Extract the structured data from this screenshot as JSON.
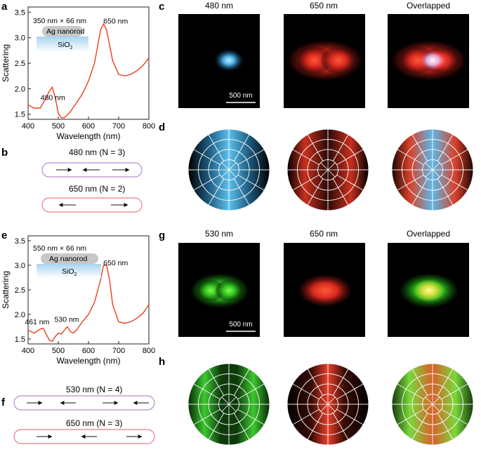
{
  "panel_labels": {
    "a": "a",
    "b": "b",
    "c": "c",
    "d": "d",
    "e": "e",
    "f": "f",
    "g": "g",
    "h": "h"
  },
  "colors": {
    "curve": "#e8401c",
    "blue": "#4fb3e8",
    "red": "#e8302a",
    "green": "#3ccf2a",
    "yellow": "#d8e85a",
    "rod": "#c8c8c8"
  },
  "chart_data": [
    {
      "id": "a",
      "type": "line",
      "xlabel": "Wavelength (nm)",
      "ylabel": "Scattering",
      "xlim": [
        400,
        800
      ],
      "ylim": [
        1.4,
        3.6
      ],
      "xticks": [
        "400",
        "500",
        "600",
        "700",
        "800"
      ],
      "yticks": [
        "1.5",
        "2.0",
        "2.5",
        "3.0",
        "3.5"
      ],
      "series": [
        {
          "name": "scattering",
          "x": [
            400,
            420,
            440,
            460,
            470,
            480,
            490,
            500,
            510,
            520,
            540,
            560,
            580,
            600,
            620,
            640,
            650,
            660,
            680,
            700,
            720,
            740,
            760,
            780,
            800
          ],
          "y": [
            1.68,
            1.62,
            1.62,
            1.82,
            1.95,
            2.03,
            1.82,
            1.52,
            1.43,
            1.43,
            1.55,
            1.72,
            1.9,
            2.15,
            2.5,
            3.15,
            3.27,
            3.15,
            2.55,
            2.28,
            2.25,
            2.28,
            2.35,
            2.45,
            2.6
          ]
        }
      ],
      "annotations": [
        {
          "text": "480 nm",
          "x": 482,
          "y": 1.78
        },
        {
          "text": "650 nm",
          "x": 690,
          "y": 3.28
        }
      ],
      "inset": {
        "size": "350 nm × 66 nm",
        "rod": "Ag nanorod",
        "substrate": "SiO",
        "sub": "2"
      }
    },
    {
      "id": "e",
      "type": "line",
      "xlabel": "Wavelength (nm)",
      "ylabel": "Scattering",
      "xlim": [
        400,
        800
      ],
      "ylim": [
        1.4,
        3.6
      ],
      "xticks": [
        "400",
        "500",
        "600",
        "700",
        "800"
      ],
      "yticks": [
        "1.5",
        "2.0",
        "2.5",
        "3.0",
        "3.5"
      ],
      "series": [
        {
          "name": "scattering",
          "x": [
            400,
            420,
            440,
            450,
            460,
            470,
            480,
            490,
            500,
            510,
            520,
            530,
            540,
            550,
            560,
            580,
            600,
            620,
            640,
            650,
            660,
            670,
            680,
            700,
            720,
            740,
            760,
            780,
            800
          ],
          "y": [
            1.68,
            1.62,
            1.7,
            1.72,
            1.6,
            1.48,
            1.45,
            1.55,
            1.62,
            1.6,
            1.68,
            1.75,
            1.65,
            1.62,
            1.68,
            1.85,
            2.0,
            2.25,
            2.7,
            3.0,
            3.0,
            2.7,
            2.2,
            1.85,
            1.82,
            1.85,
            1.92,
            2.02,
            2.2
          ]
        }
      ],
      "annotations": [
        {
          "text": "461 nm",
          "x": 430,
          "y": 1.8
        },
        {
          "text": "530 nm",
          "x": 528,
          "y": 1.85
        },
        {
          "text": "650 nm",
          "x": 690,
          "y": 3.0
        }
      ],
      "inset": {
        "size": "550 nm × 66 nm",
        "rod": "Ag nanorod",
        "substrate": "SiO",
        "sub": "2"
      }
    }
  ],
  "panel_b": {
    "modes": [
      {
        "label": "480 nm (N = 3)",
        "arrows": [
          "right",
          "left",
          "right"
        ]
      },
      {
        "label": "650 nm (N = 2)",
        "arrows": [
          "left",
          "right"
        ]
      }
    ]
  },
  "panel_f": {
    "modes": [
      {
        "label": "530 nm (N = 4)",
        "arrows": [
          "right",
          "left",
          "right",
          "left"
        ]
      },
      {
        "label": "650 nm (N = 3)",
        "arrows": [
          "right",
          "left",
          "right"
        ]
      }
    ]
  },
  "panel_c": {
    "titles": [
      "480 nm",
      "650 nm",
      "Overlapped"
    ],
    "scalebar": "500 nm"
  },
  "panel_g": {
    "titles": [
      "530 nm",
      "650 nm",
      "Overlapped"
    ],
    "scalebar": "500 nm"
  }
}
